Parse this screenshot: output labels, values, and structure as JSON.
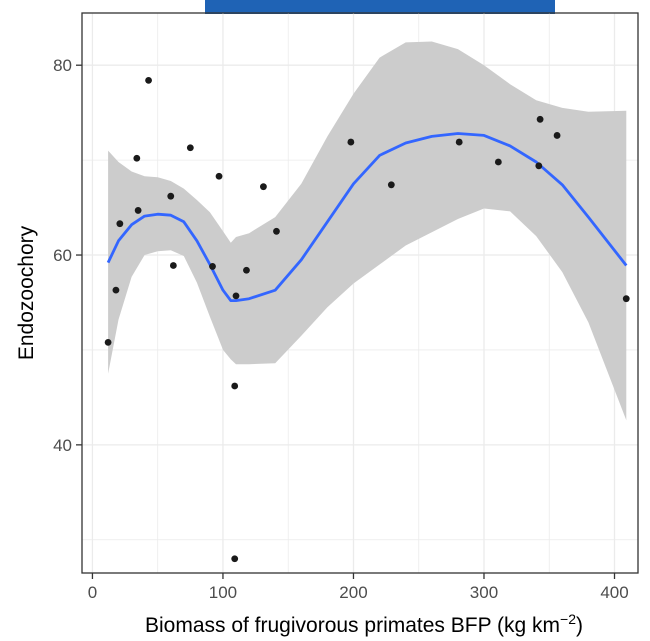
{
  "header_band": {
    "text": ""
  },
  "chart_data": {
    "type": "scatter",
    "title": "",
    "xlabel": "Biomass of frugivorous primates BFP (kg km",
    "xlabel_superscript": "−2",
    "xlabel_suffix": ")",
    "ylabel": "Endozoochory",
    "xlim": [
      -8,
      418
    ],
    "ylim": [
      26.5,
      85.5
    ],
    "x_ticks": [
      0,
      100,
      200,
      300,
      400
    ],
    "y_ticks": [
      40,
      60,
      80
    ],
    "grid": true,
    "points": [
      {
        "x": 12,
        "y": 50.8
      },
      {
        "x": 18,
        "y": 56.3
      },
      {
        "x": 21,
        "y": 63.3
      },
      {
        "x": 34,
        "y": 70.2
      },
      {
        "x": 35,
        "y": 64.7
      },
      {
        "x": 43,
        "y": 78.4
      },
      {
        "x": 60,
        "y": 66.2
      },
      {
        "x": 62,
        "y": 58.9
      },
      {
        "x": 75,
        "y": 71.3
      },
      {
        "x": 92,
        "y": 58.8
      },
      {
        "x": 97,
        "y": 68.3
      },
      {
        "x": 109,
        "y": 46.2
      },
      {
        "x": 110,
        "y": 55.7
      },
      {
        "x": 109,
        "y": 28.0
      },
      {
        "x": 118,
        "y": 58.4
      },
      {
        "x": 131,
        "y": 67.2
      },
      {
        "x": 141,
        "y": 62.5
      },
      {
        "x": 198,
        "y": 71.9
      },
      {
        "x": 229,
        "y": 67.4
      },
      {
        "x": 281,
        "y": 71.9
      },
      {
        "x": 311,
        "y": 69.8
      },
      {
        "x": 342,
        "y": 69.4
      },
      {
        "x": 343,
        "y": 74.3
      },
      {
        "x": 356,
        "y": 72.6
      },
      {
        "x": 409,
        "y": 55.4
      }
    ],
    "smooth": {
      "color": "#3366ff",
      "x": [
        12,
        20,
        30,
        40,
        50,
        60,
        70,
        80,
        90,
        100,
        106,
        110,
        120,
        140,
        160,
        180,
        200,
        220,
        240,
        260,
        280,
        300,
        320,
        340,
        360,
        380,
        409
      ],
      "y": [
        59.2,
        61.5,
        63.2,
        64.1,
        64.3,
        64.2,
        63.5,
        61.5,
        59.0,
        56.3,
        55.2,
        55.2,
        55.4,
        56.3,
        59.5,
        63.5,
        67.5,
        70.5,
        71.8,
        72.5,
        72.8,
        72.6,
        71.5,
        69.8,
        67.4,
        64.0,
        58.9
      ],
      "upper": [
        71.0,
        69.8,
        68.8,
        68.3,
        68.2,
        67.8,
        67.0,
        65.8,
        64.5,
        62.5,
        61.3,
        61.9,
        62.3,
        64.0,
        67.5,
        72.5,
        77.0,
        80.8,
        82.4,
        82.5,
        81.7,
        80.0,
        78.0,
        76.3,
        75.5,
        75.1,
        75.2
      ],
      "lower": [
        47.5,
        53.2,
        57.7,
        60.0,
        60.4,
        60.5,
        59.9,
        57.1,
        53.5,
        50.0,
        49.0,
        48.5,
        48.5,
        48.6,
        51.5,
        54.5,
        57.0,
        59.0,
        61.0,
        62.4,
        63.8,
        64.9,
        64.6,
        62.0,
        58.2,
        52.9,
        42.6
      ]
    },
    "colors": {
      "ribbon": "#cccccc",
      "point": "#1a1a1a",
      "grid": "#ebebeb",
      "panel_border": "#333333"
    }
  }
}
